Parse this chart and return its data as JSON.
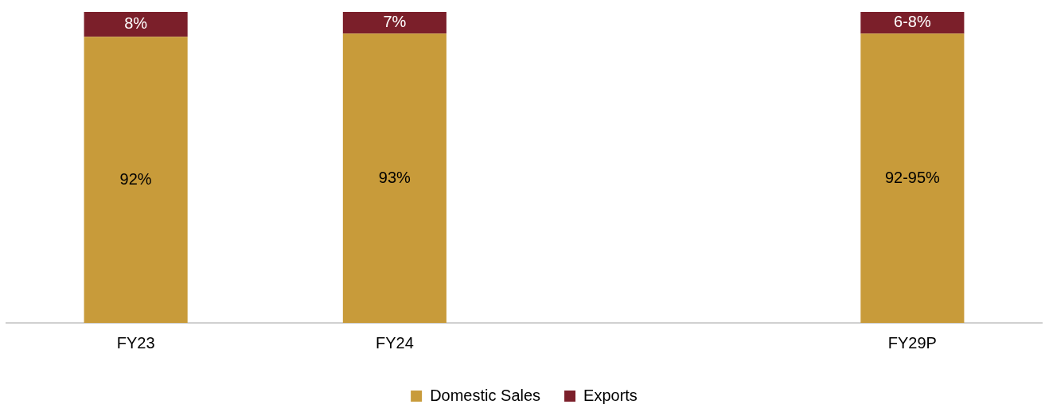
{
  "chart_data": {
    "type": "bar",
    "stacked": true,
    "categories": [
      "FY23",
      "FY24",
      null,
      "FY29P"
    ],
    "series": [
      {
        "name": "Domestic Sales",
        "color": "#c89b3a",
        "values": [
          92,
          93,
          null,
          93
        ],
        "value_labels": [
          "92%",
          "93%",
          null,
          null
        ]
      },
      {
        "name": "Exports",
        "color": "#7b1f2a",
        "values": [
          8,
          7,
          null,
          7
        ],
        "value_labels": [
          "8%",
          "7%",
          null,
          null
        ]
      }
    ],
    "annotations": [
      "92-95%",
      "6-8%"
    ],
    "ylim": [
      0,
      100
    ],
    "tick_labels": "x",
    "grid": false,
    "legend": "bottom"
  }
}
